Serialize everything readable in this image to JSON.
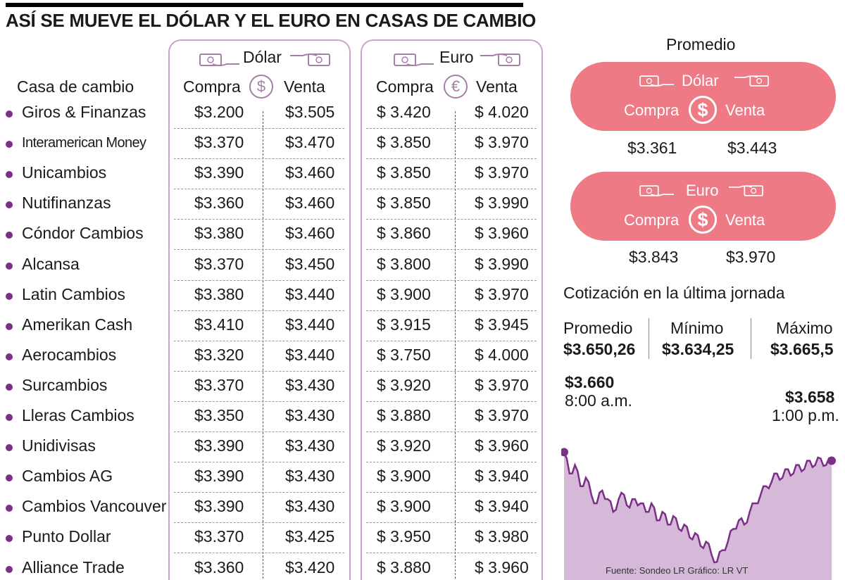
{
  "title": "ASÍ SE MUEVE EL DÓLAR Y EL EURO EN CASAS DE CAMBIO",
  "table": {
    "col_name": "Casa de cambio",
    "dolar_label": "Dólar",
    "euro_label": "Euro",
    "compra": "Compra",
    "venta": "Venta",
    "dolar_coin": "$",
    "euro_coin": "€",
    "rows": [
      {
        "name": "Giros & Finanzas",
        "dc": "$3.200",
        "dv": "$3.505",
        "ec": "$ 3.420",
        "ev": "$ 4.020"
      },
      {
        "name": "Interamerican Money",
        "dc": "$3.370",
        "dv": "$3.470",
        "ec": "$ 3.850",
        "ev": "$ 3.970"
      },
      {
        "name": "Unicambios",
        "dc": "$3.390",
        "dv": "$3.460",
        "ec": "$ 3.850",
        "ev": "$ 3.970"
      },
      {
        "name": "Nutifinanzas",
        "dc": "$3.360",
        "dv": "$3.460",
        "ec": "$ 3.850",
        "ev": "$ 3.990"
      },
      {
        "name": "Cóndor Cambios",
        "dc": "$3.380",
        "dv": "$3.460",
        "ec": "$ 3.860",
        "ev": "$ 3.960"
      },
      {
        "name": "Alcansa",
        "dc": "$3.370",
        "dv": "$3.450",
        "ec": "$ 3.800",
        "ev": "$ 3.990"
      },
      {
        "name": "Latin Cambios",
        "dc": "$3.380",
        "dv": "$3.440",
        "ec": "$ 3.900",
        "ev": "$ 3.970"
      },
      {
        "name": "Amerikan Cash",
        "dc": "$3.410",
        "dv": "$3.440",
        "ec": "$ 3.915",
        "ev": "$ 3.945"
      },
      {
        "name": "Aerocambios",
        "dc": "$3.320",
        "dv": "$3.440",
        "ec": "$ 3.750",
        "ev": "$ 4.000"
      },
      {
        "name": "Surcambios",
        "dc": "$3.370",
        "dv": "$3.430",
        "ec": "$ 3.920",
        "ev": "$ 3.970"
      },
      {
        "name": "Lleras Cambios",
        "dc": "$3.350",
        "dv": "$3.430",
        "ec": "$ 3.880",
        "ev": "$ 3.970"
      },
      {
        "name": "Unidivisas",
        "dc": "$3.390",
        "dv": "$3.430",
        "ec": "$ 3.920",
        "ev": "$ 3.960"
      },
      {
        "name": "Cambios AG",
        "dc": "$3.390",
        "dv": "$3.430",
        "ec": "$ 3.900",
        "ev": "$ 3.940"
      },
      {
        "name": "Cambios Vancouver",
        "dc": "$3.390",
        "dv": "$3.430",
        "ec": "$ 3.900",
        "ev": "$ 3.940"
      },
      {
        "name": "Punto Dollar",
        "dc": "$3.370",
        "dv": "$3.425",
        "ec": "$ 3.950",
        "ev": "$ 3.980"
      },
      {
        "name": "Alliance Trade",
        "dc": "$3.360",
        "dv": "$3.420",
        "ec": "$ 3.880",
        "ev": "$ 3.960"
      }
    ]
  },
  "promedio": {
    "title": "Promedio",
    "dolar": {
      "label": "Dólar",
      "compra_label": "Compra",
      "venta_label": "Venta",
      "coin": "$",
      "compra": "$3.361",
      "venta": "$3.443"
    },
    "euro": {
      "label": "Euro",
      "compra_label": "Compra",
      "venta_label": "Venta",
      "coin": "$",
      "compra": "$3.843",
      "venta": "$3.970"
    }
  },
  "cotizacion": {
    "title": "Cotización en la última jornada",
    "promedio_label": "Promedio",
    "promedio_value": "$3.650,26",
    "minimo_label": "Mínimo",
    "minimo_value": "$3.634,25",
    "maximo_label": "Máximo",
    "maximo_value": "$3.665,5",
    "start_value": "$3.660",
    "start_time": "8:00 a.m.",
    "end_value": "$3.658",
    "end_time": "1:00 p.m."
  },
  "source": "Fuente: Sondeo LR     Gráfico: LR VT",
  "colors": {
    "accent_purple": "#7b2f86",
    "fill_purple": "#d6b8d9",
    "box_border": "#c9a6c9",
    "pill_pink": "#ee7a86"
  },
  "chart_data": {
    "type": "area",
    "title": "",
    "xlabel": "",
    "ylabel": "",
    "x_range": [
      "8:00 a.m.",
      "1:00 p.m."
    ],
    "ylim": [
      3630,
      3668
    ],
    "series": [
      {
        "values": [
          3660,
          3655,
          3657,
          3652,
          3654,
          3650,
          3648,
          3651,
          3649,
          3646,
          3649,
          3650,
          3647,
          3649,
          3648,
          3646,
          3648,
          3644,
          3646,
          3643,
          3645,
          3642,
          3643,
          3640,
          3641,
          3638,
          3639,
          3636,
          3634.25,
          3637,
          3639,
          3642,
          3644,
          3643,
          3646,
          3648,
          3650,
          3652,
          3653,
          3655,
          3654,
          3656,
          3655,
          3657,
          3656,
          3658,
          3657,
          3658.5,
          3657,
          3658
        ]
      }
    ],
    "markers": [
      {
        "label": "$3.660",
        "time": "8:00 a.m."
      },
      {
        "label": "$3.658",
        "time": "1:00 p.m."
      }
    ]
  }
}
